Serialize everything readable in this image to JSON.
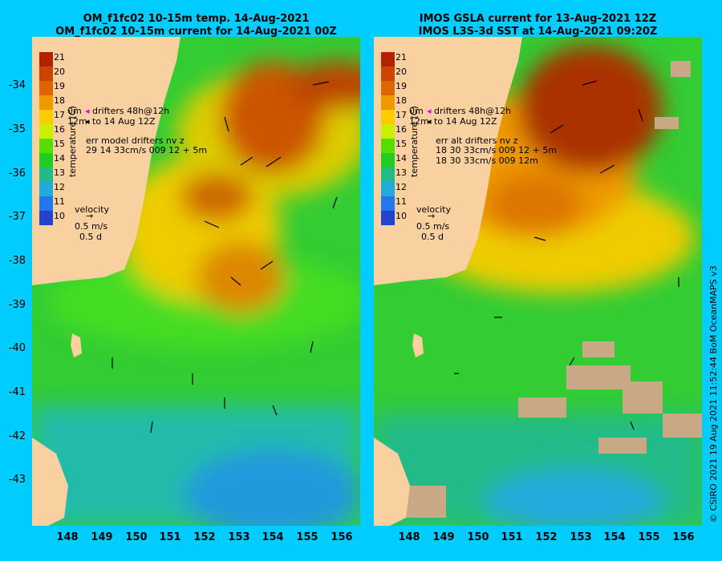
{
  "left_panel": {
    "title_line1": "OM_f1fc02 10-15m temp. 14-Aug-2021",
    "title_line2": "OM_f1fc02 10-15m current for 14-Aug-2021 00Z",
    "legend_drifters": "drifters 48h@12h",
    "legend_to": "to 14 Aug 12Z",
    "legend_0m": "0m",
    "legend_12m": "12m",
    "err_line1": "err model drifters nv z",
    "err_line2": "29 14 33cm/s 009 12 + 5m",
    "velocity_label": "velocity",
    "velocity_speed": "0.5 m/s",
    "velocity_time": "0.5 d",
    "colorbar_title": "temperature (C)"
  },
  "right_panel": {
    "title_line1": "IMOS GSLA current for 13-Aug-2021 12Z",
    "title_line2": "IMOS L3S-3d SST at 14-Aug-2021 09:20Z",
    "legend_drifters": "drifters 48h@12h",
    "legend_to": "to 14 Aug 12Z",
    "legend_0m": "0m",
    "legend_12m": "12m",
    "err_line1": "err alt drifters nv z",
    "err_line2": "18 30 33cm/s 009 12 + 5m",
    "err_line3": "18 30 33cm/s 009 12m",
    "velocity_label": "velocity",
    "velocity_speed": "0.5 m/s",
    "velocity_time": "0.5 d",
    "colorbar_title": "temperature (C)"
  },
  "axes": {
    "lat_ticks": [
      "-34",
      "-35",
      "-36",
      "-37",
      "-38",
      "-39",
      "-40",
      "-41",
      "-42",
      "-43"
    ],
    "lon_ticks": [
      "148",
      "149",
      "150",
      "151",
      "152",
      "153",
      "154",
      "155",
      "156"
    ]
  },
  "colorbar": {
    "labels": [
      "21",
      "20",
      "19",
      "18",
      "17",
      "16",
      "15",
      "14",
      "13",
      "12",
      "11",
      "10"
    ],
    "colors": [
      "#b22200",
      "#cc4400",
      "#dd6600",
      "#ee9900",
      "#ffcc00",
      "#ccee00",
      "#55dd00",
      "#22cc22",
      "#22bb88",
      "#22aadd",
      "#2277ee",
      "#2244cc"
    ]
  },
  "credit": "© CSIRO 2021  19 Aug 2021 11:52:44 BoM OceanMAPS v3"
}
